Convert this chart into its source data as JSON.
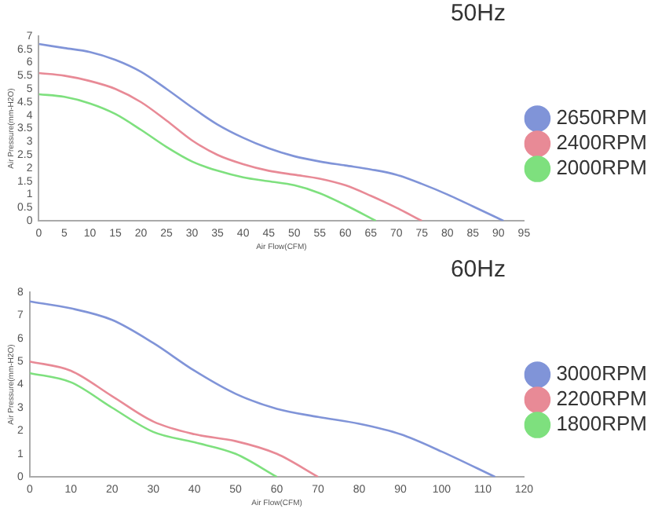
{
  "chart_data": [
    {
      "type": "line",
      "title": "50Hz",
      "xlabel": "Air Flow(CFM)",
      "ylabel": "Air Pressure(mm-H2O)",
      "xlim": [
        0,
        95
      ],
      "xticks": [
        0,
        5,
        10,
        15,
        20,
        25,
        30,
        35,
        40,
        45,
        50,
        55,
        60,
        65,
        70,
        75,
        80,
        85,
        90,
        95
      ],
      "ylim": [
        0,
        7
      ],
      "yticks": [
        0,
        0.5,
        1,
        1.5,
        2,
        2.5,
        3,
        3.5,
        4,
        4.5,
        5,
        5.5,
        6,
        6.5,
        7
      ],
      "grid": false,
      "legend": "right",
      "marker": "none",
      "line_style": "solid",
      "series": [
        {
          "name": "2650RPM",
          "color": "#8094d8",
          "x": [
            0,
            5,
            10,
            15,
            20,
            25,
            30,
            35,
            40,
            45,
            50,
            55,
            60,
            65,
            70,
            75,
            80,
            85,
            91
          ],
          "values": [
            6.7,
            6.55,
            6.4,
            6.1,
            5.65,
            5.0,
            4.3,
            3.65,
            3.15,
            2.75,
            2.45,
            2.25,
            2.1,
            1.95,
            1.75,
            1.4,
            1.0,
            0.55,
            0
          ]
        },
        {
          "name": "2400RPM",
          "color": "#e88a96",
          "x": [
            0,
            5,
            10,
            15,
            20,
            25,
            30,
            35,
            40,
            45,
            50,
            55,
            60,
            65,
            70,
            75
          ],
          "values": [
            5.6,
            5.5,
            5.3,
            5.0,
            4.5,
            3.8,
            3.05,
            2.5,
            2.15,
            1.9,
            1.75,
            1.6,
            1.35,
            0.95,
            0.5,
            0
          ]
        },
        {
          "name": "2000RPM",
          "color": "#7ee07e",
          "x": [
            0,
            5,
            10,
            15,
            20,
            25,
            30,
            35,
            40,
            45,
            50,
            55,
            60,
            66
          ],
          "values": [
            4.8,
            4.7,
            4.45,
            4.05,
            3.45,
            2.8,
            2.25,
            1.9,
            1.65,
            1.5,
            1.35,
            1.05,
            0.6,
            0
          ]
        }
      ]
    },
    {
      "type": "line",
      "title": "60Hz",
      "xlabel": "Air Flow(CFM)",
      "ylabel": "Air Pressure(mm-H2O)",
      "xlim": [
        0,
        120
      ],
      "xticks": [
        0,
        10,
        20,
        30,
        40,
        50,
        60,
        70,
        80,
        90,
        100,
        110,
        120
      ],
      "ylim": [
        0,
        8
      ],
      "yticks": [
        0,
        1,
        2,
        3,
        4,
        5,
        6,
        7,
        8
      ],
      "grid": false,
      "legend": "right",
      "marker": "none",
      "line_style": "solid",
      "series": [
        {
          "name": "3000RPM",
          "color": "#8094d8",
          "x": [
            0,
            10,
            20,
            30,
            40,
            50,
            60,
            70,
            80,
            90,
            100,
            113
          ],
          "values": [
            7.6,
            7.3,
            6.8,
            5.8,
            4.6,
            3.6,
            2.95,
            2.6,
            2.3,
            1.85,
            1.1,
            0
          ]
        },
        {
          "name": "2200RPM",
          "color": "#e88a96",
          "x": [
            0,
            10,
            20,
            30,
            40,
            50,
            60,
            70
          ],
          "values": [
            5.0,
            4.6,
            3.5,
            2.4,
            1.85,
            1.55,
            1.0,
            0
          ]
        },
        {
          "name": "1800RPM",
          "color": "#7ee07e",
          "x": [
            0,
            10,
            20,
            30,
            40,
            50,
            60
          ],
          "values": [
            4.5,
            4.1,
            3.0,
            1.95,
            1.5,
            1.0,
            0
          ]
        }
      ]
    }
  ]
}
